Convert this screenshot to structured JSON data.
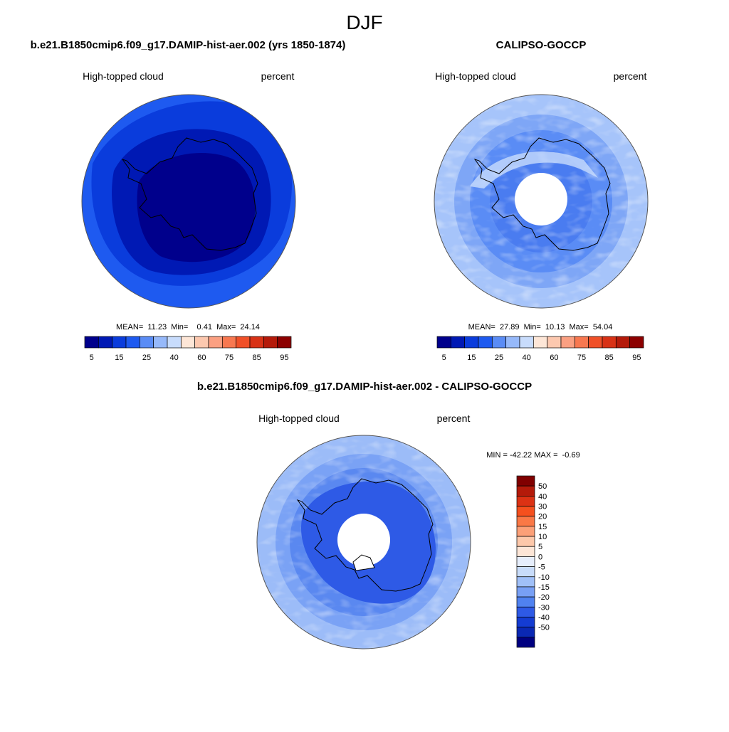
{
  "page": {
    "title": "DJF"
  },
  "panels": {
    "model": {
      "title": "b.e21.B1850cmip6.f09_g17.DAMIP-hist-aer.002 (yrs 1850-1874)",
      "left_label": "High-topped cloud",
      "right_label": "percent",
      "stats": "MEAN=  11.23  Min=    0.41  Max=  24.14"
    },
    "obs": {
      "title": "CALIPSO-GOCCP",
      "left_label": "High-topped cloud",
      "right_label": "percent",
      "stats": "MEAN=  27.89  Min=  10.13  Max=  54.04"
    },
    "diff": {
      "title": "b.e21.B1850cmip6.f09_g17.DAMIP-hist-aer.002 - CALIPSO-GOCCP",
      "left_label": "High-topped cloud",
      "right_label": "percent",
      "stats": "MIN = -42.22 MAX =  -0.69"
    }
  },
  "chart_data": [
    {
      "type": "heatmap",
      "projection": "south-polar-stereographic",
      "title": "b.e21.B1850cmip6.f09_g17.DAMIP-hist-aer.002 (yrs 1850-1874)",
      "variable": "High-topped cloud",
      "units": "percent",
      "mean": 11.23,
      "min": 0.41,
      "max": 24.14,
      "colorbar_tick_labels": [
        "5",
        "15",
        "25",
        "40",
        "60",
        "75",
        "85",
        "95"
      ],
      "colorbar_colors": [
        "#00008c",
        "#0019b4",
        "#0a3cdc",
        "#1e5af0",
        "#5a8cf5",
        "#96b9fa",
        "#c8dcfc",
        "#fde6d7",
        "#fcc8af",
        "#fba082",
        "#f87850",
        "#f05028",
        "#d83216",
        "#b41a0a",
        "#8c0000"
      ]
    },
    {
      "type": "heatmap",
      "projection": "south-polar-stereographic",
      "title": "CALIPSO-GOCCP",
      "variable": "High-topped cloud",
      "units": "percent",
      "mean": 27.89,
      "min": 10.13,
      "max": 54.04,
      "colorbar_tick_labels": [
        "5",
        "15",
        "25",
        "40",
        "60",
        "75",
        "85",
        "95"
      ],
      "colorbar_colors": [
        "#00008c",
        "#0019b4",
        "#0a3cdc",
        "#1e5af0",
        "#5a8cf5",
        "#96b9fa",
        "#c8dcfc",
        "#fde6d7",
        "#fcc8af",
        "#fba082",
        "#f87850",
        "#f05028",
        "#d83216",
        "#b41a0a",
        "#8c0000"
      ]
    },
    {
      "type": "heatmap",
      "projection": "south-polar-stereographic",
      "title": "b.e21.B1850cmip6.f09_g17.DAMIP-hist-aer.002 - CALIPSO-GOCCP",
      "variable": "High-topped cloud",
      "units": "percent",
      "min": -42.22,
      "max": -0.69,
      "colorbar_tick_labels": [
        "50",
        "40",
        "30",
        "20",
        "15",
        "10",
        "5",
        "0",
        "-5",
        "-10",
        "-15",
        "-20",
        "-30",
        "-40",
        "-50"
      ],
      "colorbar_colors": [
        "#800000",
        "#b41a0a",
        "#dc3214",
        "#f5501e",
        "#fa7846",
        "#fca078",
        "#fdc8aa",
        "#fde6d7",
        "#e6eefc",
        "#c8dcfa",
        "#a0c0f8",
        "#78a0f5",
        "#5082f0",
        "#2e5ae6",
        "#143cd2",
        "#0a28b4",
        "#000080"
      ]
    }
  ]
}
